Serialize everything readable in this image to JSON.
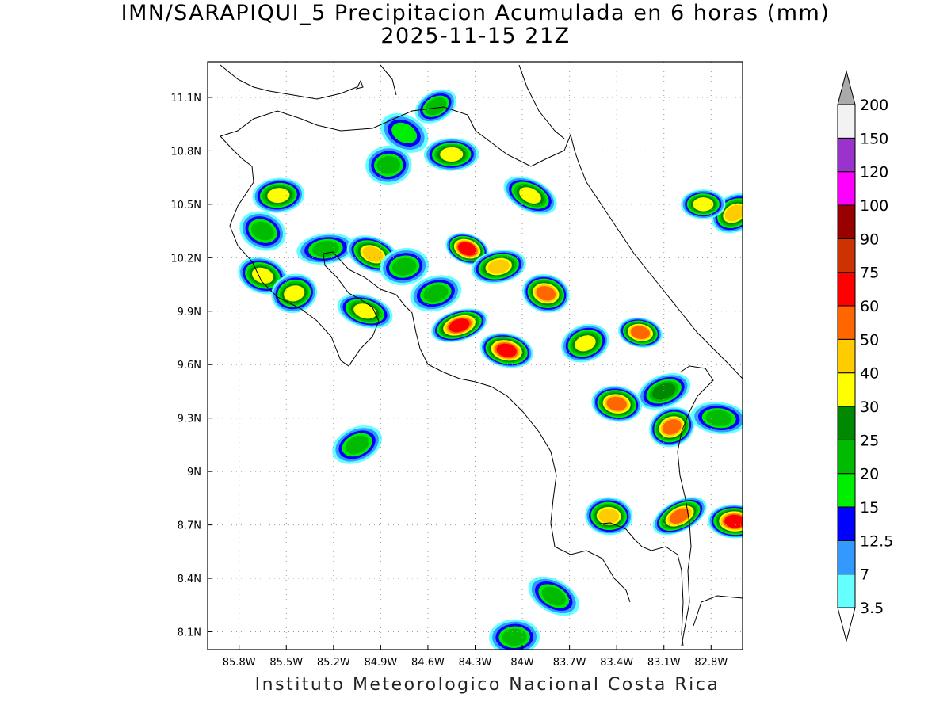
{
  "title": {
    "line1": "IMN/SARAPIQUI_5 Precipitacion Acumulada en 6 horas (mm)",
    "line2": "2025-11-15 21Z"
  },
  "credit": "Instituto Meteorologico Nacional Costa Rica",
  "map": {
    "lon_range": [
      -86.0,
      -82.6
    ],
    "lat_range": [
      8.0,
      11.3
    ],
    "lon_ticks": [
      "85.8W",
      "85.5W",
      "85.2W",
      "84.9W",
      "84.6W",
      "84.3W",
      "84W",
      "83.7W",
      "83.4W",
      "83.1W",
      "82.8W"
    ],
    "lat_ticks": [
      "11.1N",
      "10.8N",
      "10.5N",
      "10.2N",
      "9.9N",
      "9.6N",
      "9.3N",
      "9N",
      "8.7N",
      "8.4N",
      "8.1N"
    ],
    "gridlines": "dotted"
  },
  "legend": {
    "levels": [
      "3.5",
      "7",
      "12.5",
      "15",
      "20",
      "25",
      "30",
      "40",
      "50",
      "60",
      "75",
      "90",
      "100",
      "120",
      "150",
      "200"
    ],
    "colors": [
      "#66ffff",
      "#3399ff",
      "#0000ff",
      "#00ee00",
      "#00bb00",
      "#008800",
      "#ffff00",
      "#ffcc00",
      "#ff6600",
      "#ff0000",
      "#cc3300",
      "#990000",
      "#ff00ff",
      "#9933cc",
      "#f2f2f2",
      "#aaaaaa"
    ],
    "below_min_color": "#ffffff",
    "above_max_color": "#aaaaaa"
  },
  "precip_cells": [
    {
      "lon": -84.55,
      "lat": 11.05,
      "peak_mm": 22
    },
    {
      "lon": -84.45,
      "lat": 10.78,
      "peak_mm": 35
    },
    {
      "lon": -84.75,
      "lat": 10.9,
      "peak_mm": 16
    },
    {
      "lon": -84.85,
      "lat": 10.72,
      "peak_mm": 22
    },
    {
      "lon": -83.95,
      "lat": 10.55,
      "peak_mm": 30
    },
    {
      "lon": -85.55,
      "lat": 10.55,
      "peak_mm": 30
    },
    {
      "lon": -85.65,
      "lat": 10.35,
      "peak_mm": 22
    },
    {
      "lon": -85.25,
      "lat": 10.25,
      "peak_mm": 22
    },
    {
      "lon": -84.95,
      "lat": 10.22,
      "peak_mm": 45
    },
    {
      "lon": -84.75,
      "lat": 10.15,
      "peak_mm": 22
    },
    {
      "lon": -84.35,
      "lat": 10.25,
      "peak_mm": 60
    },
    {
      "lon": -84.15,
      "lat": 10.15,
      "peak_mm": 45
    },
    {
      "lon": -85.65,
      "lat": 10.1,
      "peak_mm": 30
    },
    {
      "lon": -85.45,
      "lat": 10.0,
      "peak_mm": 35
    },
    {
      "lon": -85.0,
      "lat": 9.9,
      "peak_mm": 35
    },
    {
      "lon": -84.55,
      "lat": 10.0,
      "peak_mm": 22
    },
    {
      "lon": -83.85,
      "lat": 10.0,
      "peak_mm": 55
    },
    {
      "lon": -84.4,
      "lat": 9.82,
      "peak_mm": 65
    },
    {
      "lon": -84.1,
      "lat": 9.68,
      "peak_mm": 60
    },
    {
      "lon": -83.6,
      "lat": 9.72,
      "peak_mm": 35
    },
    {
      "lon": -83.25,
      "lat": 9.78,
      "peak_mm": 50
    },
    {
      "lon": -83.1,
      "lat": 9.45,
      "peak_mm": 25
    },
    {
      "lon": -83.4,
      "lat": 9.38,
      "peak_mm": 50
    },
    {
      "lon": -83.05,
      "lat": 9.25,
      "peak_mm": 50
    },
    {
      "lon": -82.75,
      "lat": 9.3,
      "peak_mm": 22
    },
    {
      "lon": -85.05,
      "lat": 9.15,
      "peak_mm": 20
    },
    {
      "lon": -83.45,
      "lat": 8.75,
      "peak_mm": 40
    },
    {
      "lon": -83.0,
      "lat": 8.75,
      "peak_mm": 55
    },
    {
      "lon": -82.65,
      "lat": 8.72,
      "peak_mm": 60
    },
    {
      "lon": -82.65,
      "lat": 10.45,
      "peak_mm": 40
    },
    {
      "lon": -82.85,
      "lat": 10.5,
      "peak_mm": 30
    },
    {
      "lon": -83.8,
      "lat": 8.3,
      "peak_mm": 20
    },
    {
      "lon": -84.05,
      "lat": 8.07,
      "peak_mm": 22
    }
  ]
}
